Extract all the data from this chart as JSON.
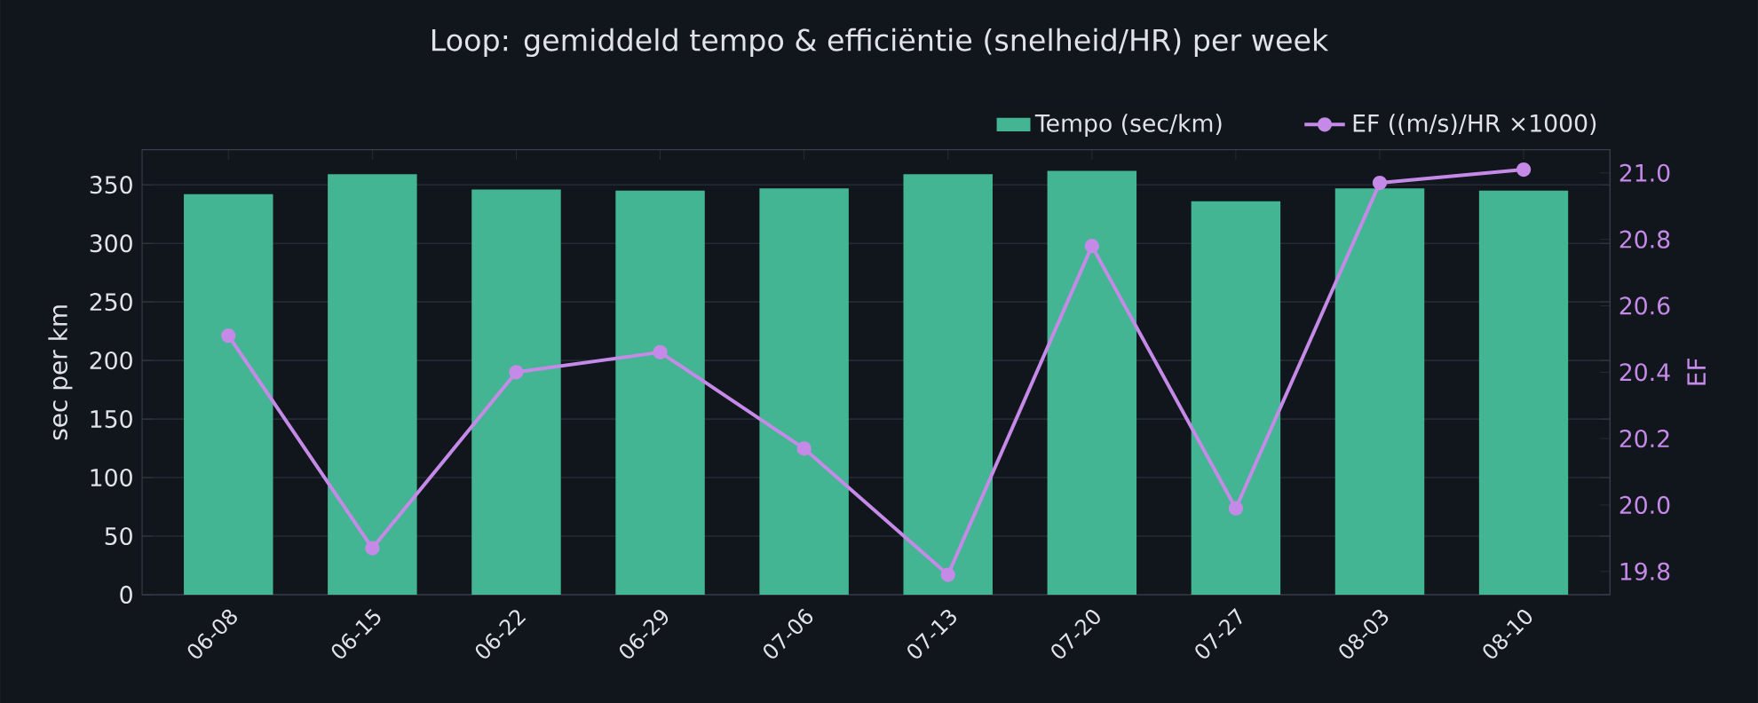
{
  "chart_data": {
    "type": "bar",
    "title": "Loop: gemiddeld tempo & efficiëntie (snelheid/HR) per week",
    "ylabel": "sec per km",
    "y2label": "EF",
    "categories": [
      "06-08",
      "06-15",
      "06-22",
      "06-29",
      "07-06",
      "07-13",
      "07-20",
      "07-27",
      "08-03",
      "08-10"
    ],
    "series": [
      {
        "name": "Tempo (sec/km)",
        "color": "#43b593",
        "values": [
          342,
          359,
          346,
          345,
          347,
          359,
          362,
          336,
          347,
          345
        ]
      },
      {
        "name": "EF ((m/s)/HR ×1000)",
        "type": "line",
        "axis": "y2",
        "color": "#c58ae8",
        "values": [
          20.51,
          19.87,
          20.4,
          20.46,
          20.17,
          19.79,
          20.78,
          19.99,
          20.97,
          21.01
        ]
      }
    ],
    "ylim": [
      0,
      380
    ],
    "yticks": [
      0,
      50,
      100,
      150,
      200,
      250,
      300,
      350
    ],
    "y2lim": [
      19.73,
      21.07
    ],
    "y2ticks": [
      19.8,
      {
        "value": 20,
        "label": "20.0"
      },
      20.2,
      20.4,
      20.6,
      20.8,
      {
        "value": 21,
        "label": "21.0"
      }
    ],
    "grid": "y",
    "legend": "top right",
    "marker": "circle",
    "line_style": "solid"
  }
}
